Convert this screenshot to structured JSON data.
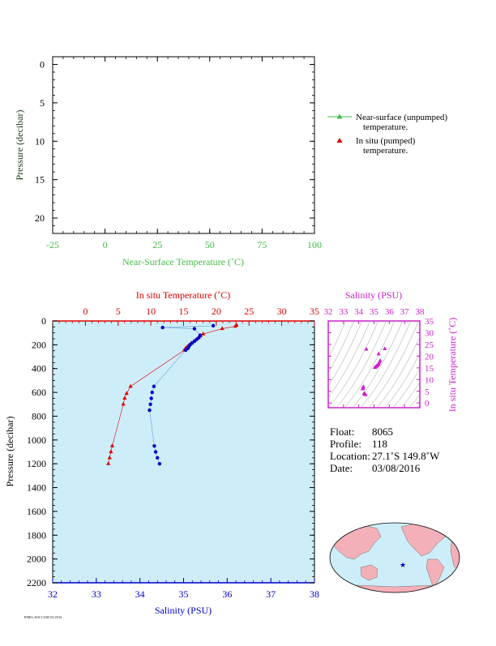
{
  "colors": {
    "green": "#44bb44",
    "red": "#dd0000",
    "blue": "#0000cc",
    "magenta": "#cc22cc",
    "plot_bg": "#cdeef8",
    "axis_dark": "#1a3a1a"
  },
  "chart_data": [
    {
      "type": "line",
      "xlabel": "Near-Surface Temperature (˚C)",
      "ylabel": "Pressure (decibar)",
      "xlim": [
        -25,
        100
      ],
      "ylim": [
        22,
        -1
      ],
      "x_ticks": [
        "-25",
        "0",
        "25",
        "50",
        "75",
        "100"
      ],
      "y_ticks": [
        "0",
        "5",
        "10",
        "15",
        "20"
      ],
      "series": [],
      "legend": {
        "placement": "right",
        "items": [
          {
            "label": "Near-surface (unpumped)",
            "label2": "temperature.",
            "marker": "line-triangle",
            "color": "#44bb44"
          },
          {
            "label": "In situ (pumped)",
            "label2": "temperature.",
            "marker": "triangle",
            "color": "#dd0000"
          }
        ]
      }
    },
    {
      "type": "scatter",
      "top_xlabel": "In situ Temperature (˚C)",
      "bottom_xlabel": "Salinity (PSU)",
      "ylabel": "Pressure (decibar)",
      "temp_lim": [
        -5,
        35
      ],
      "sal_lim": [
        32,
        38
      ],
      "ylim": [
        2200,
        0
      ],
      "temp_ticks": [
        "0",
        "5",
        "10",
        "15",
        "20",
        "25",
        "30",
        "35"
      ],
      "sal_ticks": [
        "32",
        "33",
        "34",
        "35",
        "36",
        "37",
        "38"
      ],
      "y_ticks": [
        "0",
        "200",
        "400",
        "600",
        "800",
        "1000",
        "1200",
        "1400",
        "1600",
        "1800",
        "2000",
        "2200"
      ],
      "series": [
        {
          "name": "In situ Temperature",
          "color": "#dd0000",
          "marker": "triangle",
          "points": [
            [
              23.1,
              35
            ],
            [
              22.9,
              45
            ],
            [
              20.9,
              65
            ],
            [
              18.0,
              110
            ],
            [
              17.6,
              125
            ],
            [
              17.3,
              140
            ],
            [
              17.0,
              155
            ],
            [
              16.6,
              170
            ],
            [
              16.2,
              185
            ],
            [
              15.9,
              200
            ],
            [
              15.6,
              215
            ],
            [
              15.3,
              230
            ],
            [
              15.1,
              245
            ],
            [
              6.9,
              550
            ],
            [
              6.3,
              610
            ],
            [
              6.0,
              650
            ],
            [
              5.8,
              700
            ],
            [
              4.1,
              1050
            ],
            [
              3.9,
              1100
            ],
            [
              3.7,
              1150
            ],
            [
              3.5,
              1200
            ]
          ]
        },
        {
          "name": "Salinity",
          "color": "#0000cc",
          "marker": "dot",
          "points": [
            [
              35.68,
              40
            ],
            [
              34.52,
              55
            ],
            [
              35.25,
              65
            ],
            [
              35.38,
              120
            ],
            [
              35.35,
              140
            ],
            [
              35.3,
              155
            ],
            [
              35.25,
              170
            ],
            [
              35.2,
              185
            ],
            [
              35.15,
              200
            ],
            [
              35.12,
              215
            ],
            [
              35.1,
              230
            ],
            [
              35.05,
              245
            ],
            [
              34.32,
              550
            ],
            [
              34.28,
              600
            ],
            [
              34.26,
              650
            ],
            [
              34.24,
              700
            ],
            [
              34.22,
              750
            ],
            [
              34.33,
              1050
            ],
            [
              34.36,
              1100
            ],
            [
              34.4,
              1150
            ],
            [
              34.45,
              1200
            ]
          ]
        }
      ]
    },
    {
      "type": "scatter",
      "xlabel": "Salinity (PSU)",
      "ylabel": "In situ Temperature (˚C)",
      "xlim": [
        32,
        38
      ],
      "ylim": [
        -2,
        35
      ],
      "x_ticks": [
        "32",
        "33",
        "34",
        "35",
        "36",
        "37",
        "38"
      ],
      "y_ticks": [
        "0",
        "5",
        "10",
        "15",
        "20",
        "25",
        "30",
        "35"
      ],
      "series": [
        {
          "name": "T-S points",
          "color": "#cc22cc",
          "marker": "triangle",
          "points": [
            [
              35.7,
              23.1
            ],
            [
              34.5,
              22.9
            ],
            [
              35.3,
              20.9
            ],
            [
              35.4,
              18.0
            ],
            [
              35.35,
              17.3
            ],
            [
              35.3,
              16.6
            ],
            [
              35.25,
              16.2
            ],
            [
              35.2,
              15.9
            ],
            [
              35.15,
              15.6
            ],
            [
              35.1,
              15.3
            ],
            [
              35.05,
              15.1
            ],
            [
              34.3,
              6.9
            ],
            [
              34.28,
              6.3
            ],
            [
              34.25,
              6.0
            ],
            [
              34.35,
              4.1
            ],
            [
              34.4,
              3.7
            ],
            [
              34.45,
              3.5
            ]
          ]
        }
      ]
    }
  ],
  "float_info": {
    "float_label": "Float:",
    "float_value": "8065",
    "profile_label": "Profile:",
    "profile_value": "118",
    "location_label": "Location:",
    "location_value": "27.1˚S  149.8˚W",
    "date_label": "Date:",
    "date_value": "03/08/2016"
  },
  "map": {
    "marker": "star",
    "marker_color": "#0000cc",
    "land_color": "#f4b0b8",
    "ocean_color": "#cdeef8"
  },
  "footer": "PMEL/SOCCOM 03/2016"
}
